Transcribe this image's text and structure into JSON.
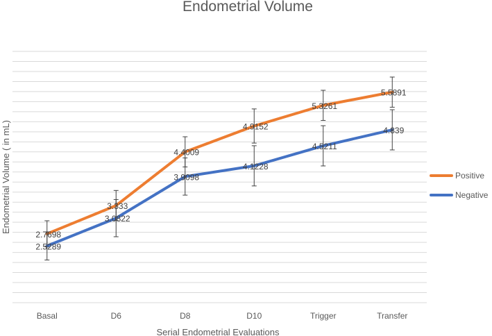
{
  "chart_data": {
    "type": "line",
    "title": "Endometrial Volume",
    "xlabel": "Serial Endometrial Evaluations",
    "ylabel": "Endometrial Volume ( in mL)",
    "categories": [
      "Basal",
      "D6",
      "D8",
      "D10",
      "Trigger",
      "Transfer"
    ],
    "ylim": [
      1.4,
      6.4
    ],
    "grid": true,
    "legend": "right",
    "series": [
      {
        "name": "Positive",
        "color": "#ED7D31",
        "values": [
          2.7698,
          3.333,
          4.4009,
          4.9152,
          5.3261,
          5.5891
        ],
        "labels": [
          "2.7698",
          "3.333",
          "4.4009",
          "4.9152",
          "5.3261",
          "5.5891"
        ],
        "error": [
          0.26,
          0.3,
          0.3,
          0.34,
          0.3,
          0.3
        ]
      },
      {
        "name": "Negative",
        "color": "#4472C4",
        "values": [
          2.5289,
          3.0822,
          3.9098,
          4.1228,
          4.5211,
          4.839
        ],
        "labels": [
          "2.5289",
          "3.0822",
          "3.9098",
          "4.1228",
          "4.5211",
          "4.839"
        ],
        "error": [
          0.28,
          0.37,
          0.37,
          0.4,
          0.4,
          0.4
        ]
      }
    ]
  }
}
